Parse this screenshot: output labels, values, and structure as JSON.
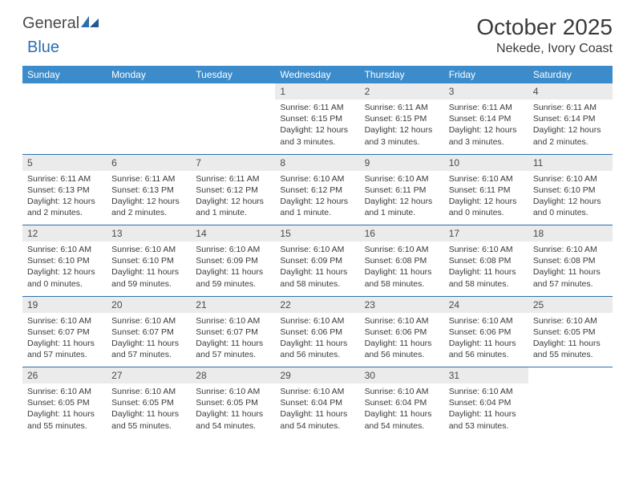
{
  "brand": {
    "text1": "General",
    "text2": "Blue"
  },
  "colors": {
    "header_bg": "#3c8ccb",
    "separator": "#2e6fa8",
    "daynum_bg": "#ebebeb",
    "text": "#3a3a3a",
    "logo_gray": "#4a4a4a",
    "logo_blue": "#2c6fb0"
  },
  "title": "October 2025",
  "location": "Nekede, Ivory Coast",
  "dow": [
    "Sunday",
    "Monday",
    "Tuesday",
    "Wednesday",
    "Thursday",
    "Friday",
    "Saturday"
  ],
  "weeks": [
    [
      {
        "n": "",
        "sr": "",
        "ss": "",
        "dl": ""
      },
      {
        "n": "",
        "sr": "",
        "ss": "",
        "dl": ""
      },
      {
        "n": "",
        "sr": "",
        "ss": "",
        "dl": ""
      },
      {
        "n": "1",
        "sr": "Sunrise: 6:11 AM",
        "ss": "Sunset: 6:15 PM",
        "dl": "Daylight: 12 hours and 3 minutes."
      },
      {
        "n": "2",
        "sr": "Sunrise: 6:11 AM",
        "ss": "Sunset: 6:15 PM",
        "dl": "Daylight: 12 hours and 3 minutes."
      },
      {
        "n": "3",
        "sr": "Sunrise: 6:11 AM",
        "ss": "Sunset: 6:14 PM",
        "dl": "Daylight: 12 hours and 3 minutes."
      },
      {
        "n": "4",
        "sr": "Sunrise: 6:11 AM",
        "ss": "Sunset: 6:14 PM",
        "dl": "Daylight: 12 hours and 2 minutes."
      }
    ],
    [
      {
        "n": "5",
        "sr": "Sunrise: 6:11 AM",
        "ss": "Sunset: 6:13 PM",
        "dl": "Daylight: 12 hours and 2 minutes."
      },
      {
        "n": "6",
        "sr": "Sunrise: 6:11 AM",
        "ss": "Sunset: 6:13 PM",
        "dl": "Daylight: 12 hours and 2 minutes."
      },
      {
        "n": "7",
        "sr": "Sunrise: 6:11 AM",
        "ss": "Sunset: 6:12 PM",
        "dl": "Daylight: 12 hours and 1 minute."
      },
      {
        "n": "8",
        "sr": "Sunrise: 6:10 AM",
        "ss": "Sunset: 6:12 PM",
        "dl": "Daylight: 12 hours and 1 minute."
      },
      {
        "n": "9",
        "sr": "Sunrise: 6:10 AM",
        "ss": "Sunset: 6:11 PM",
        "dl": "Daylight: 12 hours and 1 minute."
      },
      {
        "n": "10",
        "sr": "Sunrise: 6:10 AM",
        "ss": "Sunset: 6:11 PM",
        "dl": "Daylight: 12 hours and 0 minutes."
      },
      {
        "n": "11",
        "sr": "Sunrise: 6:10 AM",
        "ss": "Sunset: 6:10 PM",
        "dl": "Daylight: 12 hours and 0 minutes."
      }
    ],
    [
      {
        "n": "12",
        "sr": "Sunrise: 6:10 AM",
        "ss": "Sunset: 6:10 PM",
        "dl": "Daylight: 12 hours and 0 minutes."
      },
      {
        "n": "13",
        "sr": "Sunrise: 6:10 AM",
        "ss": "Sunset: 6:10 PM",
        "dl": "Daylight: 11 hours and 59 minutes."
      },
      {
        "n": "14",
        "sr": "Sunrise: 6:10 AM",
        "ss": "Sunset: 6:09 PM",
        "dl": "Daylight: 11 hours and 59 minutes."
      },
      {
        "n": "15",
        "sr": "Sunrise: 6:10 AM",
        "ss": "Sunset: 6:09 PM",
        "dl": "Daylight: 11 hours and 58 minutes."
      },
      {
        "n": "16",
        "sr": "Sunrise: 6:10 AM",
        "ss": "Sunset: 6:08 PM",
        "dl": "Daylight: 11 hours and 58 minutes."
      },
      {
        "n": "17",
        "sr": "Sunrise: 6:10 AM",
        "ss": "Sunset: 6:08 PM",
        "dl": "Daylight: 11 hours and 58 minutes."
      },
      {
        "n": "18",
        "sr": "Sunrise: 6:10 AM",
        "ss": "Sunset: 6:08 PM",
        "dl": "Daylight: 11 hours and 57 minutes."
      }
    ],
    [
      {
        "n": "19",
        "sr": "Sunrise: 6:10 AM",
        "ss": "Sunset: 6:07 PM",
        "dl": "Daylight: 11 hours and 57 minutes."
      },
      {
        "n": "20",
        "sr": "Sunrise: 6:10 AM",
        "ss": "Sunset: 6:07 PM",
        "dl": "Daylight: 11 hours and 57 minutes."
      },
      {
        "n": "21",
        "sr": "Sunrise: 6:10 AM",
        "ss": "Sunset: 6:07 PM",
        "dl": "Daylight: 11 hours and 57 minutes."
      },
      {
        "n": "22",
        "sr": "Sunrise: 6:10 AM",
        "ss": "Sunset: 6:06 PM",
        "dl": "Daylight: 11 hours and 56 minutes."
      },
      {
        "n": "23",
        "sr": "Sunrise: 6:10 AM",
        "ss": "Sunset: 6:06 PM",
        "dl": "Daylight: 11 hours and 56 minutes."
      },
      {
        "n": "24",
        "sr": "Sunrise: 6:10 AM",
        "ss": "Sunset: 6:06 PM",
        "dl": "Daylight: 11 hours and 56 minutes."
      },
      {
        "n": "25",
        "sr": "Sunrise: 6:10 AM",
        "ss": "Sunset: 6:05 PM",
        "dl": "Daylight: 11 hours and 55 minutes."
      }
    ],
    [
      {
        "n": "26",
        "sr": "Sunrise: 6:10 AM",
        "ss": "Sunset: 6:05 PM",
        "dl": "Daylight: 11 hours and 55 minutes."
      },
      {
        "n": "27",
        "sr": "Sunrise: 6:10 AM",
        "ss": "Sunset: 6:05 PM",
        "dl": "Daylight: 11 hours and 55 minutes."
      },
      {
        "n": "28",
        "sr": "Sunrise: 6:10 AM",
        "ss": "Sunset: 6:05 PM",
        "dl": "Daylight: 11 hours and 54 minutes."
      },
      {
        "n": "29",
        "sr": "Sunrise: 6:10 AM",
        "ss": "Sunset: 6:04 PM",
        "dl": "Daylight: 11 hours and 54 minutes."
      },
      {
        "n": "30",
        "sr": "Sunrise: 6:10 AM",
        "ss": "Sunset: 6:04 PM",
        "dl": "Daylight: 11 hours and 54 minutes."
      },
      {
        "n": "31",
        "sr": "Sunrise: 6:10 AM",
        "ss": "Sunset: 6:04 PM",
        "dl": "Daylight: 11 hours and 53 minutes."
      },
      {
        "n": "",
        "sr": "",
        "ss": "",
        "dl": ""
      }
    ]
  ]
}
